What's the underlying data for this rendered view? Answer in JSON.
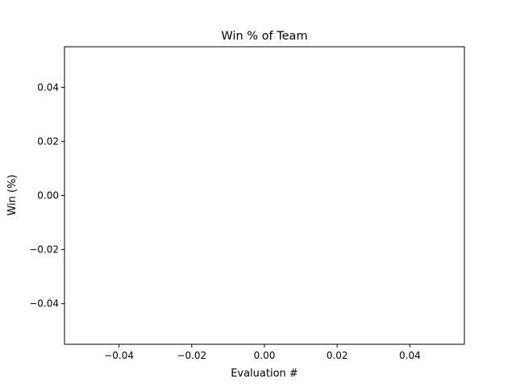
{
  "chart_data": {
    "type": "line",
    "title": "Win % of Team",
    "xlabel": "Evaluation #",
    "ylabel": "Win (%)",
    "xlim": [
      -0.055,
      0.055
    ],
    "ylim": [
      -0.055,
      0.055
    ],
    "xticks": [
      -0.04,
      -0.02,
      0.0,
      0.02,
      0.04
    ],
    "xtick_labels": [
      "−0.04",
      "−0.02",
      "0.00",
      "0.02",
      "0.04"
    ],
    "yticks": [
      0.04,
      0.02,
      0.0,
      -0.02,
      -0.04
    ],
    "ytick_labels": [
      "0.04",
      "0.02",
      "0.00",
      "−0.02",
      "−0.04"
    ],
    "series": [],
    "grid": false,
    "legend": "none",
    "colors": {
      "axes": "#000000",
      "background": "#ffffff"
    }
  }
}
